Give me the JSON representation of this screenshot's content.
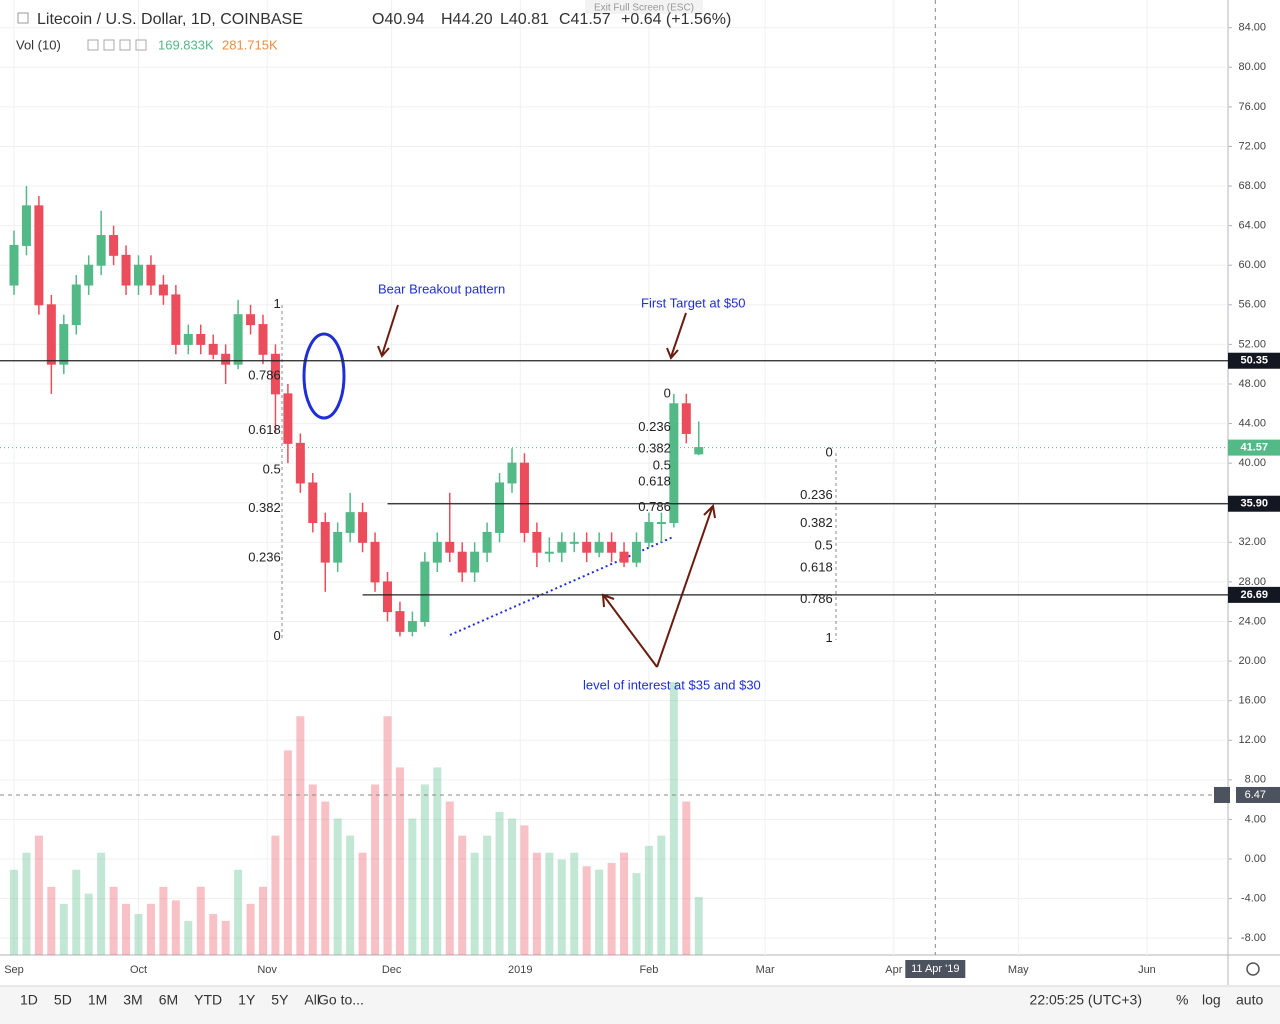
{
  "header": {
    "symbol": "Litecoin / U.S. Dollar, 1D, COINBASE",
    "open": "O40.94",
    "high": "H44.20",
    "low": "L40.81",
    "close": "C41.57",
    "change": "+0.64 (+1.56%)",
    "exit": "Exit Full Screen (ESC)",
    "vol_label": "Vol (10)",
    "vol_value": "169.833K",
    "vol_ma": "281.715K"
  },
  "chart_data": {
    "type": "candlestick",
    "x": [
      0,
      3,
      6,
      9,
      12,
      15,
      18,
      21,
      24,
      27,
      30,
      33,
      36,
      39,
      42,
      45,
      48,
      51,
      54,
      57,
      60,
      63,
      66,
      69,
      72,
      75,
      78,
      81,
      84,
      87,
      90,
      93,
      96,
      99,
      102,
      105,
      108,
      111,
      114,
      117,
      120,
      123,
      126,
      129,
      132,
      135,
      138,
      141,
      144,
      147,
      150,
      153,
      156,
      159,
      162,
      165
    ],
    "ohlc": [
      [
        58,
        63.5,
        57,
        62
      ],
      [
        62,
        68,
        61,
        66
      ],
      [
        66,
        67,
        55,
        56
      ],
      [
        56,
        57,
        47,
        50
      ],
      [
        50,
        55,
        49,
        54
      ],
      [
        54,
        59,
        53,
        58
      ],
      [
        58,
        61,
        57,
        60
      ],
      [
        60,
        65.5,
        59,
        63
      ],
      [
        63,
        64,
        60,
        61
      ],
      [
        61,
        62,
        57,
        58
      ],
      [
        58,
        61,
        57,
        60
      ],
      [
        60,
        61,
        57,
        58
      ],
      [
        58,
        59,
        56,
        57
      ],
      [
        57,
        58,
        51,
        52
      ],
      [
        52,
        54,
        51,
        53
      ],
      [
        53,
        54,
        51,
        52
      ],
      [
        52,
        53,
        50.5,
        51
      ],
      [
        51,
        52,
        48,
        50
      ],
      [
        50,
        56.5,
        49.5,
        55
      ],
      [
        55,
        56,
        53,
        54
      ],
      [
        54,
        55,
        50,
        51
      ],
      [
        51,
        52,
        43,
        47
      ],
      [
        47,
        48,
        40,
        42
      ],
      [
        42,
        43,
        37,
        38
      ],
      [
        38,
        39,
        33,
        34
      ],
      [
        34,
        35,
        27,
        30
      ],
      [
        30,
        34,
        29,
        33
      ],
      [
        33,
        37,
        32,
        35
      ],
      [
        35,
        36,
        31,
        32
      ],
      [
        32,
        33,
        27,
        28
      ],
      [
        28,
        29,
        24,
        25
      ],
      [
        25,
        26,
        22.5,
        23
      ],
      [
        23,
        25,
        22.5,
        24
      ],
      [
        24,
        31,
        23.5,
        30
      ],
      [
        30,
        33,
        29,
        32
      ],
      [
        32,
        37,
        30,
        31
      ],
      [
        31,
        32,
        28,
        29
      ],
      [
        29,
        32,
        28,
        31
      ],
      [
        31,
        34,
        30,
        33
      ],
      [
        33,
        39,
        32,
        38
      ],
      [
        38,
        41.5,
        37,
        40
      ],
      [
        40,
        41,
        32,
        33
      ],
      [
        33,
        34,
        29.5,
        31
      ],
      [
        31,
        32.5,
        30,
        31
      ],
      [
        31,
        33,
        30,
        32
      ],
      [
        32,
        33,
        31,
        32
      ],
      [
        32,
        33,
        30,
        31
      ],
      [
        31,
        33,
        30.5,
        32
      ],
      [
        32,
        33,
        30,
        31
      ],
      [
        31,
        32,
        29.5,
        30
      ],
      [
        30,
        33,
        29.5,
        32
      ],
      [
        32,
        35,
        31.5,
        34
      ],
      [
        34,
        35,
        32,
        34
      ],
      [
        34,
        47,
        33.5,
        46
      ],
      [
        46,
        47,
        42,
        43
      ],
      [
        40.94,
        44.2,
        40.81,
        41.57
      ]
    ],
    "volume": [
      250,
      300,
      350,
      200,
      150,
      250,
      180,
      300,
      200,
      150,
      120,
      150,
      200,
      160,
      100,
      200,
      120,
      100,
      250,
      150,
      200,
      350,
      600,
      700,
      500,
      450,
      400,
      350,
      300,
      500,
      700,
      550,
      400,
      500,
      550,
      450,
      350,
      300,
      350,
      420,
      400,
      380,
      300,
      300,
      280,
      300,
      260,
      250,
      270,
      300,
      240,
      320,
      350,
      800,
      450,
      170
    ],
    "vol_ylim": [
      0,
      2800
    ],
    "up_color": "#53b987",
    "down_color": "#eb4d5c",
    "ylim": [
      -9.7,
      86.8
    ],
    "yticks": [
      {
        "value": 84,
        "label": "84.00"
      },
      {
        "value": 80,
        "label": "80.00"
      },
      {
        "value": 76,
        "label": "76.00"
      },
      {
        "value": 72,
        "label": "72.00"
      },
      {
        "value": 68,
        "label": "68.00"
      },
      {
        "value": 64,
        "label": "64.00"
      },
      {
        "value": 60,
        "label": "60.00"
      },
      {
        "value": 56,
        "label": "56.00"
      },
      {
        "value": 52,
        "label": "52.00"
      },
      {
        "value": 48,
        "label": "48.00"
      },
      {
        "value": 44,
        "label": "44.00"
      },
      {
        "value": 40,
        "label": "40.00"
      },
      {
        "value": 36,
        "label": "36.00"
      },
      {
        "value": 32,
        "label": "32.00"
      },
      {
        "value": 28,
        "label": "28.00"
      },
      {
        "value": 24,
        "label": "24.00"
      },
      {
        "value": 20,
        "label": "20.00"
      },
      {
        "value": 16,
        "label": "16.00"
      },
      {
        "value": 12,
        "label": "12.00"
      },
      {
        "value": 8,
        "label": "8.00"
      },
      {
        "value": 4,
        "label": "4.00"
      },
      {
        "value": 0,
        "label": "0.00"
      },
      {
        "value": -4,
        "label": "-4.00"
      },
      {
        "value": -8,
        "label": "-8.00"
      }
    ],
    "xticks": [
      {
        "value": 0,
        "label": "Sep"
      },
      {
        "value": 30,
        "label": "Oct"
      },
      {
        "value": 61,
        "label": "Nov"
      },
      {
        "value": 91,
        "label": "Dec"
      },
      {
        "value": 122,
        "label": "2019"
      },
      {
        "value": 153,
        "label": "Feb"
      },
      {
        "value": 181,
        "label": "Mar"
      },
      {
        "value": 212,
        "label": "Apr"
      },
      {
        "value": 242,
        "label": "May"
      },
      {
        "value": 273,
        "label": "Jun"
      }
    ],
    "cursor_x": {
      "value": 222,
      "label": "11 Apr '19"
    },
    "grid": true,
    "levels": [
      {
        "value": 50.35,
        "label": "50.35",
        "start": -4
      },
      {
        "value": 35.9,
        "label": "35.90",
        "start": 90
      },
      {
        "value": 26.69,
        "label": "26.69",
        "start": 84
      }
    ],
    "last_price": {
      "value": 41.57,
      "label": "41.57"
    },
    "cursor_y": {
      "value": 6.47,
      "label": "6.47"
    },
    "fib_sets": [
      {
        "x": 65,
        "levels": [
          {
            "label": "1",
            "price": 56
          },
          {
            "label": "0.786",
            "price": 48.8
          },
          {
            "label": "0.618",
            "price": 43.3
          },
          {
            "label": "0.5",
            "price": 39.3
          },
          {
            "label": "0.382",
            "price": 35.4
          },
          {
            "label": "0.236",
            "price": 30.4
          },
          {
            "label": "0",
            "price": 22.5
          }
        ]
      },
      {
        "x": 159,
        "levels": [
          {
            "label": "0",
            "price": 47
          },
          {
            "label": "0.236",
            "price": 43.6
          },
          {
            "label": "0.382",
            "price": 41.4
          },
          {
            "label": "0.5",
            "price": 39.7
          },
          {
            "label": "0.618",
            "price": 38.1
          },
          {
            "label": "0.786",
            "price": 35.5
          }
        ]
      },
      {
        "x": 198,
        "levels": [
          {
            "label": "0",
            "price": 41.0
          },
          {
            "label": "0.236",
            "price": 36.7
          },
          {
            "label": "0.382",
            "price": 33.9
          },
          {
            "label": "0.5",
            "price": 31.6
          },
          {
            "label": "0.618",
            "price": 29.4
          },
          {
            "label": "0.786",
            "price": 26.2
          },
          {
            "label": "1",
            "price": 22.3
          }
        ]
      }
    ],
    "annotations": [
      "Bear Breakout pattern",
      "First Target at $50",
      "level of interest at $35 and $30"
    ]
  },
  "toolbar": {
    "ranges": [
      "1D",
      "5D",
      "1M",
      "3M",
      "6M",
      "YTD",
      "1Y",
      "5Y",
      "All"
    ],
    "goto": "Go to...",
    "clock": "22:05:25 (UTC+3)",
    "options": [
      "%",
      "log",
      "auto"
    ]
  }
}
